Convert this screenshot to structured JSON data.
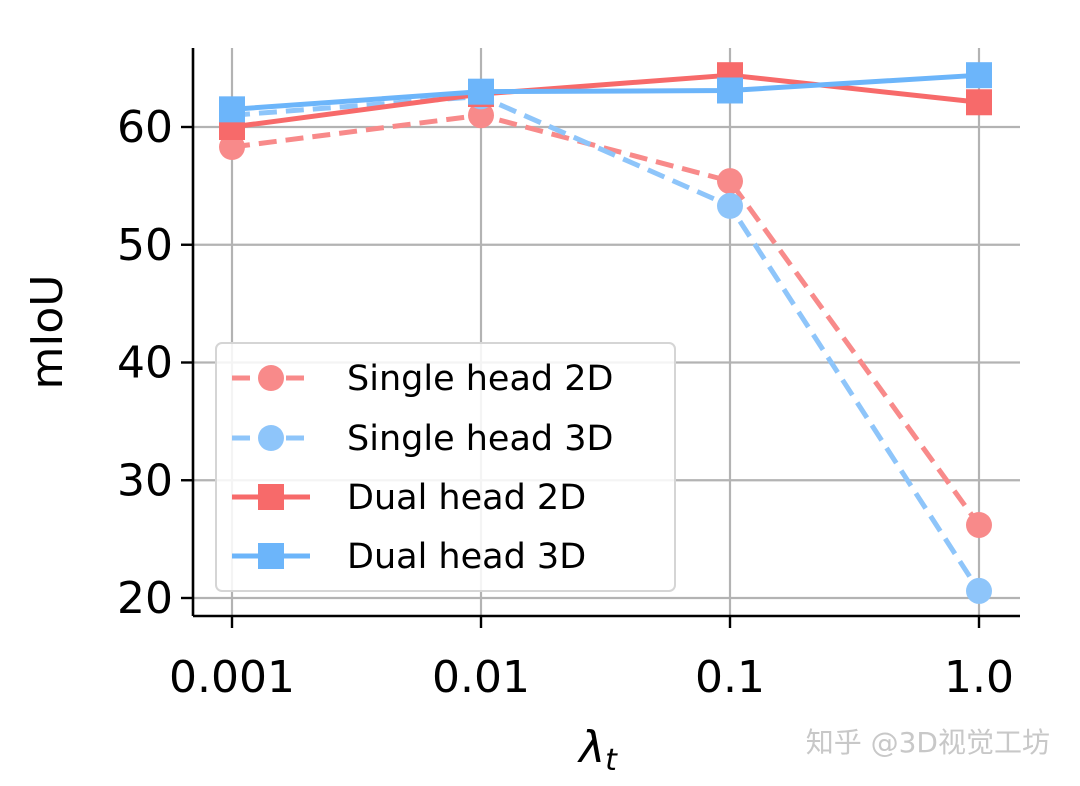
{
  "chart_data": {
    "type": "line",
    "title": "",
    "xlabel_symbol": "λ",
    "xlabel_subscript": "t",
    "ylabel": "mIoU",
    "categories": [
      "0.001",
      "0.01",
      "0.1",
      "1.0"
    ],
    "ylim": [
      18.5,
      67
    ],
    "yticks": [
      20,
      30,
      40,
      50,
      60
    ],
    "grid": true,
    "legend_position": "lower-left",
    "series": [
      {
        "name": "Single head 2D",
        "values": [
          58.3,
          61.0,
          55.4,
          26.2
        ],
        "color": "#f88a8a",
        "dash": true,
        "marker": "circle"
      },
      {
        "name": "Single head 3D",
        "values": [
          61.0,
          62.6,
          53.3,
          20.6
        ],
        "color": "#8ec5fa",
        "dash": true,
        "marker": "circle"
      },
      {
        "name": "Dual head 2D",
        "values": [
          60.0,
          62.8,
          64.4,
          62.1
        ],
        "color": "#f76a6a",
        "dash": false,
        "marker": "square"
      },
      {
        "name": "Dual head 3D",
        "values": [
          61.5,
          63.0,
          63.1,
          64.4
        ],
        "color": "#6cb5fa",
        "dash": false,
        "marker": "square"
      }
    ]
  },
  "watermark": "知乎 @3D视觉工坊"
}
